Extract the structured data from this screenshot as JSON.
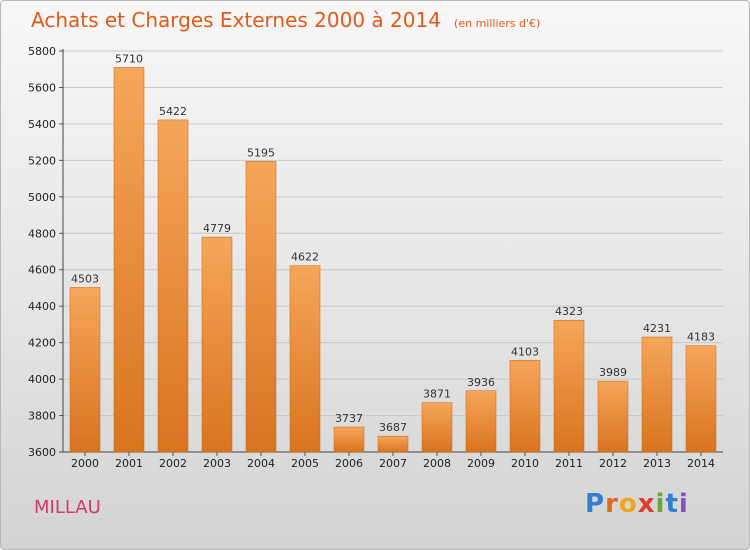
{
  "header": {
    "title": "Achats et Charges Externes 2000 à 2014",
    "subtitle": "(en milliers d'€)"
  },
  "footer": {
    "city": "MILLAU",
    "logo_text": "Proxiti"
  },
  "colors": {
    "title": "#e05a18",
    "city": "#d23a6e",
    "bar_light": "#f6a65a",
    "bar_dark": "#d9741f",
    "logo_letters": [
      "#2f7fd2",
      "#e06a1b",
      "#f0a61a",
      "#e03c2d",
      "#6aa83a",
      "#2f7fd2",
      "#8a4fbf"
    ]
  },
  "chart_data": {
    "type": "bar",
    "title": "Achats et Charges Externes 2000 à 2014",
    "subtitle": "(en milliers d'€)",
    "categories": [
      "2000",
      "2001",
      "2002",
      "2003",
      "2004",
      "2005",
      "2006",
      "2007",
      "2008",
      "2009",
      "2010",
      "2011",
      "2012",
      "2013",
      "2014"
    ],
    "values": [
      4503,
      5710,
      5422,
      4779,
      5195,
      4622,
      3737,
      3687,
      3871,
      3936,
      4103,
      4323,
      3989,
      4231,
      4183
    ],
    "ylim": [
      3600,
      5800
    ],
    "yticks": [
      3600,
      3800,
      4000,
      4200,
      4400,
      4600,
      4800,
      5000,
      5200,
      5400,
      5600,
      5800
    ],
    "grid": true,
    "data_labels": true,
    "legend": "none"
  }
}
